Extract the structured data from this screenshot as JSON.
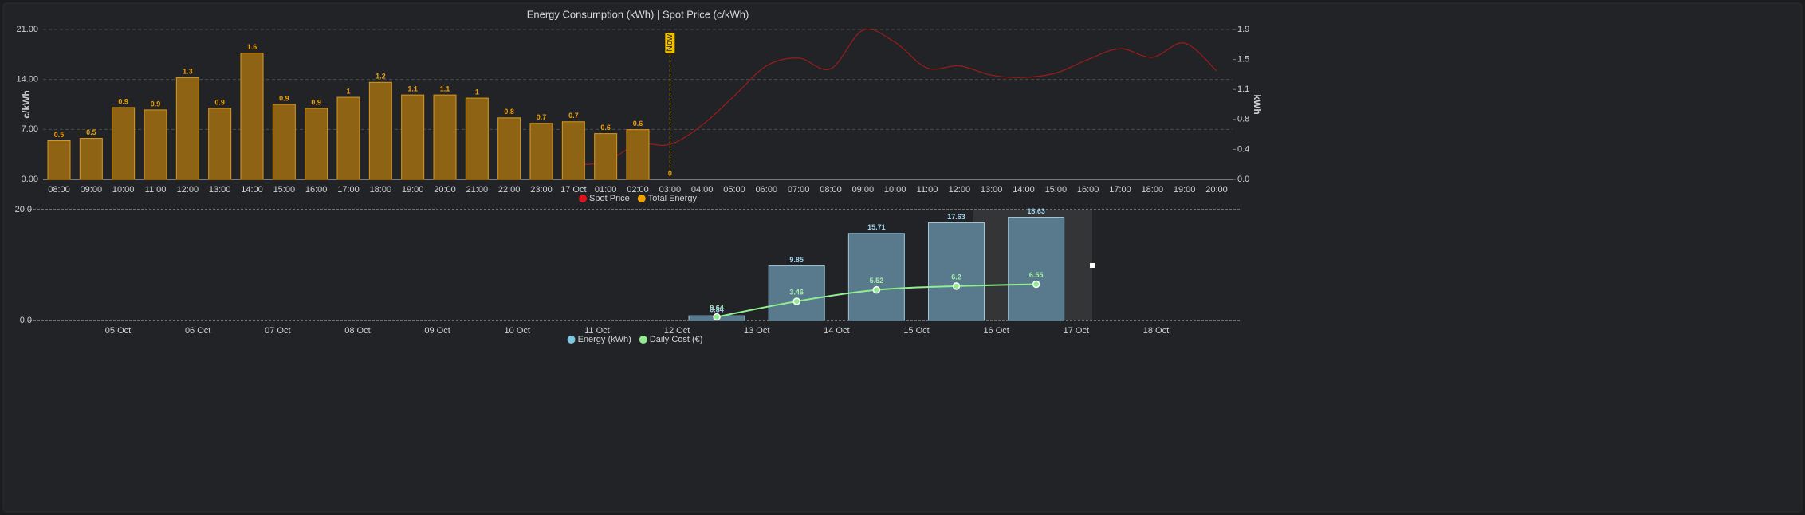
{
  "chart_data": [
    {
      "type": "bar",
      "title": "Energy Consumption (kWh) | Spot Price (c/kWh)",
      "ylabel": "c/kWh",
      "y2label": "kWh",
      "categories": [
        "08:00",
        "09:00",
        "10:00",
        "11:00",
        "12:00",
        "13:00",
        "14:00",
        "15:00",
        "16:00",
        "17:00",
        "18:00",
        "19:00",
        "20:00",
        "21:00",
        "22:00",
        "23:00",
        "17 Oct",
        "01:00",
        "02:00",
        "03:00",
        "04:00",
        "05:00",
        "06:00",
        "07:00",
        "08:00",
        "09:00",
        "10:00",
        "11:00",
        "12:00",
        "13:00",
        "14:00",
        "15:00",
        "16:00",
        "17:00",
        "18:00",
        "19:00",
        "20:00"
      ],
      "series": [
        {
          "name": "Spot Price",
          "type": "line",
          "color": "#9c1c1c",
          "legend_color": "#e0141e",
          "values": [
            null,
            null,
            null,
            null,
            null,
            null,
            null,
            null,
            null,
            null,
            null,
            null,
            null,
            null,
            null,
            null,
            2.0,
            2.5,
            4.9,
            4.9,
            7.6,
            11.7,
            15.9,
            17.0,
            15.5,
            20.9,
            19.2,
            15.6,
            15.9,
            14.6,
            14.3,
            14.9,
            16.8,
            18.3,
            17.1,
            19.1,
            15.2
          ]
        },
        {
          "name": "Total Energy",
          "type": "bar",
          "axis": "y2",
          "color": "#8e6313",
          "stroke": "#d99a1c",
          "legend_color": "#f0a000",
          "values": [
            0.49,
            0.52,
            0.91,
            0.88,
            1.29,
            0.9,
            1.6,
            0.95,
            0.9,
            1.04,
            1.23,
            1.07,
            1.07,
            1.03,
            0.78,
            0.71,
            0.73,
            0.58,
            0.63,
            0,
            null,
            null,
            null,
            null,
            null,
            null,
            null,
            null,
            null,
            null,
            null,
            null,
            null,
            null,
            null,
            null,
            null
          ],
          "value_labels": [
            "0.5",
            "0.5",
            "0.9",
            "0.9",
            "1.3",
            "0.9",
            "1.6",
            "0.9",
            "0.9",
            "1",
            "1.2",
            "1.1",
            "1.1",
            "1",
            "0.8",
            "0.7",
            "0.7",
            "0.6",
            "0.6",
            "0",
            null,
            null,
            null,
            null,
            null,
            null,
            null,
            null,
            null,
            null,
            null,
            null,
            null,
            null,
            null,
            null,
            null
          ]
        }
      ],
      "ylim": [
        0,
        21
      ],
      "yticks": [
        {
          "value": 0,
          "label": "0.00"
        },
        {
          "value": 7,
          "label": "7.00"
        },
        {
          "value": 14,
          "label": "14.00"
        },
        {
          "value": 21,
          "label": "21.00"
        }
      ],
      "y2lim": [
        0,
        1.9
      ],
      "y2ticks": [
        {
          "value": 0,
          "label": "0.0"
        },
        {
          "value": 0.38,
          "label": "0.4"
        },
        {
          "value": 0.76,
          "label": "0.8"
        },
        {
          "value": 1.14,
          "label": "1.1"
        },
        {
          "value": 1.52,
          "label": "1.5"
        },
        {
          "value": 1.9,
          "label": "1.9"
        }
      ],
      "grid": true,
      "annotation": {
        "label": "Now",
        "x": "03:00"
      }
    },
    {
      "type": "bar",
      "categories": [
        "05 Oct",
        "06 Oct",
        "07 Oct",
        "08 Oct",
        "09 Oct",
        "10 Oct",
        "11 Oct",
        "12 Oct",
        "13 Oct",
        "14 Oct",
        "15 Oct",
        "16 Oct",
        "17 Oct",
        "18 Oct"
      ],
      "series": [
        {
          "name": "Energy (kWh)",
          "type": "bar",
          "color": "#587a8c",
          "stroke": "#9cc7dd",
          "legend_color": "#7ec8e3",
          "label_color": "#9fd3ee",
          "values": [
            null,
            null,
            null,
            null,
            null,
            null,
            null,
            0.84,
            9.85,
            15.71,
            17.63,
            18.63,
            null,
            null
          ]
        },
        {
          "name": "Daily Cost (€)",
          "type": "line",
          "color": "#90ee90",
          "legend_color": "#90ee90",
          "label_color": "#a8f0a8",
          "markers": true,
          "values": [
            null,
            null,
            null,
            null,
            null,
            null,
            null,
            0.64,
            3.46,
            5.52,
            6.2,
            6.55,
            null,
            null
          ]
        }
      ],
      "ylim": [
        0,
        20
      ],
      "yticks": [
        {
          "value": 0,
          "label": "0.0"
        },
        {
          "value": 20,
          "label": "20.0"
        }
      ],
      "grid": true
    }
  ]
}
